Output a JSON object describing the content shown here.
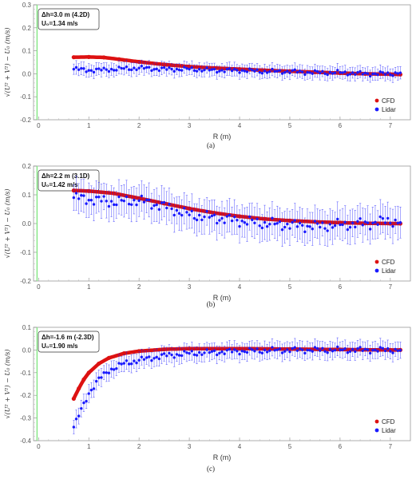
{
  "chart_data": [
    {
      "type": "scatter",
      "caption": "(a)",
      "xlabel": "R (m)",
      "ylabel": "√(U² + V²) − U₀ (m/s)",
      "xlim": [
        -0.1,
        7.4
      ],
      "ylim": [
        -0.2,
        0.3
      ],
      "xticks": [
        "0",
        "1",
        "2",
        "3",
        "4",
        "5",
        "6",
        "7"
      ],
      "yticks": [
        "-0.2",
        "-0.1",
        "0.0",
        "0.1",
        "0.2",
        "0.3"
      ],
      "annotation": [
        "Δh=3.0 m (4.2D)",
        "U₀=1.34 m/s"
      ],
      "legend": [
        "CFD",
        "Lidar"
      ],
      "legend_position": "bottom-right",
      "grid": false,
      "series": [
        {
          "name": "CFD",
          "color": "#dd1111",
          "style": "thick-line",
          "x": [
            0.7,
            1.0,
            1.3,
            1.6,
            2.0,
            2.5,
            3.0,
            3.5,
            4.0,
            4.5,
            5.0,
            5.5,
            6.0,
            6.5,
            7.0,
            7.2
          ],
          "y": [
            0.072,
            0.073,
            0.071,
            0.063,
            0.052,
            0.04,
            0.031,
            0.025,
            0.02,
            0.015,
            0.011,
            0.007,
            0.003,
            0.0,
            -0.002,
            -0.003
          ]
        },
        {
          "name": "Lidar",
          "color": "#1a1aff",
          "style": "points-errorbars",
          "err": 0.03,
          "x": [
            0.7,
            1.1,
            1.5,
            2.0,
            2.5,
            3.0,
            3.5,
            4.0,
            4.5,
            5.0,
            5.5,
            6.0,
            6.5,
            7.0,
            7.2
          ],
          "y": [
            0.02,
            0.015,
            0.02,
            0.025,
            0.02,
            0.02,
            0.015,
            0.015,
            0.01,
            0.01,
            0.005,
            0.005,
            0.0,
            0.0,
            0.005
          ]
        }
      ]
    },
    {
      "type": "scatter",
      "caption": "(b)",
      "xlabel": "R (m)",
      "ylabel": "√(U² + V²) − U₀ (m/s)",
      "xlim": [
        -0.1,
        7.4
      ],
      "ylim": [
        -0.2,
        0.2
      ],
      "xticks": [
        "0",
        "1",
        "2",
        "3",
        "4",
        "5",
        "6",
        "7"
      ],
      "yticks": [
        "-0.2",
        "-0.1",
        "0.0",
        "0.1",
        "0.2"
      ],
      "annotation": [
        "Δh=2.2 m (3.1D)",
        "U₀=1.42 m/s"
      ],
      "legend": [
        "CFD",
        "Lidar"
      ],
      "legend_position": "bottom-right",
      "grid": false,
      "series": [
        {
          "name": "CFD",
          "color": "#dd1111",
          "style": "thick-line",
          "x": [
            0.7,
            1.0,
            1.5,
            2.0,
            2.5,
            3.0,
            3.5,
            4.0,
            4.5,
            5.0,
            5.5,
            6.0,
            6.5,
            7.0,
            7.2
          ],
          "y": [
            0.115,
            0.113,
            0.105,
            0.088,
            0.07,
            0.052,
            0.037,
            0.025,
            0.016,
            0.01,
            0.006,
            0.003,
            0.001,
            0.0,
            0.0
          ]
        },
        {
          "name": "Lidar",
          "color": "#1a1aff",
          "style": "points-errorbars",
          "err": 0.06,
          "x": [
            0.7,
            1.0,
            1.5,
            2.0,
            2.5,
            3.0,
            3.5,
            4.0,
            4.5,
            5.0,
            5.5,
            6.0,
            6.5,
            7.0,
            7.2
          ],
          "y": [
            0.09,
            0.085,
            0.075,
            0.08,
            0.06,
            0.03,
            0.02,
            0.01,
            0.0,
            -0.005,
            -0.01,
            -0.005,
            0.0,
            0.01,
            0.005
          ]
        }
      ]
    },
    {
      "type": "scatter",
      "caption": "(c)",
      "xlabel": "R (m)",
      "ylabel": "√(U² + V²) − U₀ (m/s)",
      "xlim": [
        -0.1,
        7.4
      ],
      "ylim": [
        -0.4,
        0.1
      ],
      "xticks": [
        "0",
        "1",
        "2",
        "3",
        "4",
        "5",
        "6",
        "7"
      ],
      "yticks": [
        "-0.4",
        "-0.3",
        "-0.2",
        "-0.1",
        "0.0",
        "0.1"
      ],
      "annotation": [
        "Δh=-1.6 m (-2.3D)",
        "U₀=1.90 m/s"
      ],
      "legend": [
        "CFD",
        "Lidar"
      ],
      "legend_position": "bottom-right",
      "grid": false,
      "series": [
        {
          "name": "CFD",
          "color": "#dd1111",
          "style": "thick-line",
          "x": [
            0.7,
            0.8,
            0.9,
            1.0,
            1.2,
            1.4,
            1.7,
            2.0,
            2.5,
            3.0,
            4.0,
            5.0,
            6.0,
            7.0,
            7.2
          ],
          "y": [
            -0.215,
            -0.17,
            -0.13,
            -0.1,
            -0.06,
            -0.035,
            -0.015,
            -0.005,
            0.003,
            0.006,
            0.006,
            0.004,
            0.002,
            0.0,
            0.0
          ]
        },
        {
          "name": "Lidar",
          "color": "#1a1aff",
          "style": "points-errorbars",
          "err": 0.04,
          "x": [
            0.7,
            0.8,
            0.9,
            1.0,
            1.2,
            1.4,
            1.7,
            2.0,
            2.5,
            3.0,
            4.0,
            5.0,
            6.0,
            7.0,
            7.2
          ],
          "y": [
            -0.34,
            -0.29,
            -0.24,
            -0.19,
            -0.13,
            -0.09,
            -0.06,
            -0.045,
            -0.025,
            -0.015,
            -0.005,
            0.0,
            0.0,
            0.0,
            0.0
          ]
        }
      ]
    }
  ],
  "colors": {
    "cfd": "#dd1111",
    "lidar": "#1a1aff",
    "ref_line": "#88e888"
  }
}
